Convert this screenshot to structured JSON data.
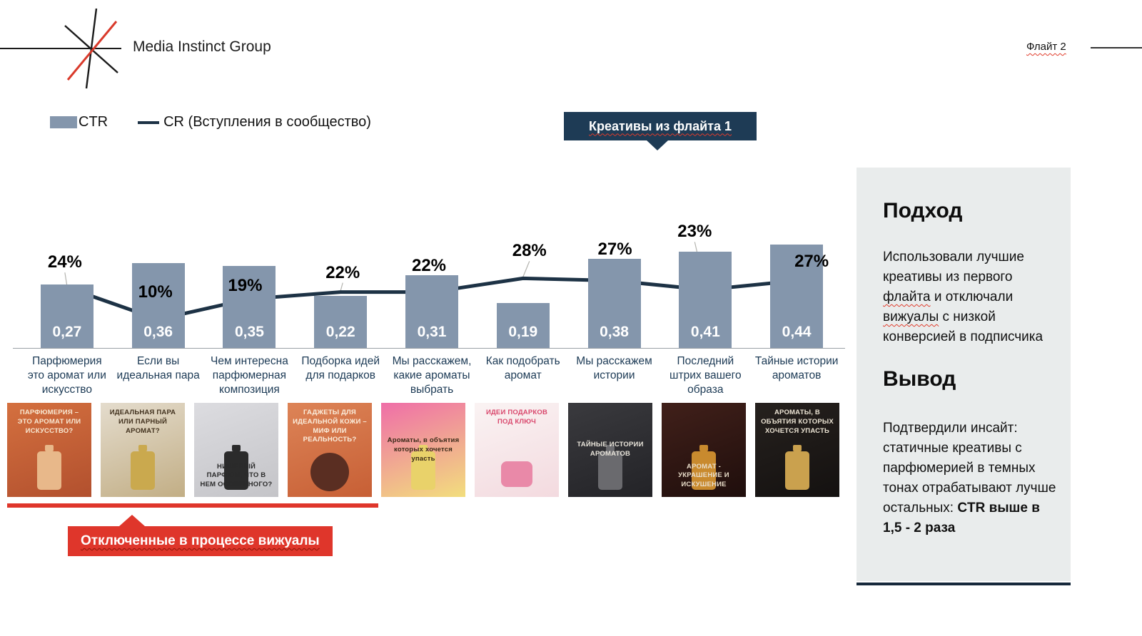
{
  "header": {
    "brand": "Media Instinct Group",
    "flight_label": "Флайт 2",
    "logo_icon": "star-asterisk-logo"
  },
  "legend": {
    "ctr_label": "CTR",
    "cr_label": "CR (Вступления в сообщество)"
  },
  "callout": {
    "label": "Креативы из флайта 1"
  },
  "chart_data": {
    "type": "bar",
    "title": "",
    "categories": [
      "Парфюмерия это аромат или искусство",
      "Если вы идеальная пара",
      "Чем интересна парфюмерная композиция",
      "Подборка идей для подарков",
      "Мы расскажем, какие ароматы выбрать",
      "Как подобрать аромат",
      "Мы расскажем истории",
      "Последний штрих вашего образа",
      "Тайные истории ароматов"
    ],
    "series": [
      {
        "name": "CTR",
        "type": "bar",
        "values": [
          0.27,
          0.36,
          0.35,
          0.22,
          0.31,
          0.19,
          0.38,
          0.41,
          0.44
        ],
        "value_labels": [
          "0,27",
          "0,36",
          "0,35",
          "0,22",
          "0,31",
          "0,19",
          "0,38",
          "0,41",
          "0,44"
        ]
      },
      {
        "name": "CR (Вступления в сообщество)",
        "type": "line",
        "values": [
          24,
          10,
          19,
          22,
          22,
          28,
          27,
          23,
          27
        ],
        "value_labels": [
          "24%",
          "10%",
          "19%",
          "22%",
          "22%",
          "28%",
          "27%",
          "23%",
          "27%"
        ]
      }
    ],
    "legend_position": "top-left",
    "grid": false,
    "bar_color": "#8496ac",
    "line_color": "#1d3245"
  },
  "creatives": [
    {
      "text": "ПАРФЮМЕРИЯ – ЭТО АРОМАТ ИЛИ ИСКУССТВО?",
      "bg": [
        "#d4703f",
        "#b2502e"
      ],
      "fg": "#f8e8d2",
      "pos": "top",
      "shape": "bottle",
      "shape_color": "#e8b88a"
    },
    {
      "text": "ИДЕАЛЬНАЯ ПАРА ИЛИ ПАРНЫЙ АРОМАТ?",
      "bg": [
        "#e4dccd",
        "#c2ae85"
      ],
      "fg": "#42321e",
      "pos": "top",
      "shape": "bottle",
      "shape_color": "#caa94e"
    },
    {
      "text": "НИШЕВЫЙ ПАРФЮМ, ЧТО В НЕМ ОСОБЕННОГО?",
      "bg": [
        "#dcdce0",
        "#c4c4c8"
      ],
      "fg": "#2a2a2a",
      "pos": "bottom",
      "shape": "bottle",
      "shape_color": "#2b2b2b"
    },
    {
      "text": "ГАДЖЕТЫ ДЛЯ ИДЕАЛЬНОЙ КОЖИ – МИФ ИЛИ РЕАЛЬНОСТЬ?",
      "bg": [
        "#dd8457",
        "#c75f35"
      ],
      "fg": "#fbeedd",
      "pos": "top",
      "shape": "sphere",
      "shape_color": "#5a2e22"
    },
    {
      "text": "Ароматы, в объятия которых хочется упасть",
      "bg": [
        "#ef6ea8",
        "#f2de7d"
      ],
      "fg": "#3a2a18",
      "pos": "center",
      "shape": "bottle",
      "shape_color": "#e9d26a"
    },
    {
      "text": "ИДЕИ ПОДАРКОВ ПОД КЛЮЧ",
      "bg": [
        "#faf3f3",
        "#f3dadf"
      ],
      "fg": "#d9486d",
      "pos": "top",
      "shape": "jar",
      "shape_color": "#e989a8"
    },
    {
      "text": "ТАЙНЫЕ ИСТОРИИ АРОМАТОВ",
      "bg": [
        "#3a3a3e",
        "#232327"
      ],
      "fg": "#e8e4da",
      "pos": "center",
      "shape": "bottle",
      "shape_color": "#6a6a6e"
    },
    {
      "text": "АРОМАТ - УКРАШЕНИЕ И ИСКУШЕНИЕ",
      "bg": [
        "#41201a",
        "#1f0e0c"
      ],
      "fg": "#e9ddc9",
      "pos": "bottom",
      "shape": "bottle",
      "shape_color": "#c98a2e"
    },
    {
      "text": "АРОМАТЫ, В ОБЪЯТИЯ КОТОРЫХ ХОЧЕТСЯ УПАСТЬ",
      "bg": [
        "#26211e",
        "#141110"
      ],
      "fg": "#ece4d4",
      "pos": "top",
      "shape": "bottle",
      "shape_color": "#caa14e"
    }
  ],
  "disabled_banner": {
    "label": "Отключенные в процессе вижуалы"
  },
  "side_panel": {
    "approach_title": "Подход",
    "approach_segments": [
      {
        "text": "Использовали лучшие креативы из первого "
      },
      {
        "text": "флайта",
        "wavy": true
      },
      {
        "text": " и отключали "
      },
      {
        "text": "вижуалы",
        "wavy": true
      },
      {
        "text": " с низкой конверсией в подписчика"
      }
    ],
    "conclusion_title": "Вывод",
    "conclusion_text": "Подтвердили инсайт: статичные креативы с парфюмерией в темных тонах отрабатывают лучше остальных: ",
    "conclusion_bold": "CTR выше в 1,5 - 2 раза"
  },
  "colors": {
    "bar": "#8496ac",
    "navy": "#1d3245",
    "badge_navy": "#1e3b55",
    "red": "#df362b",
    "panel_bg": "#e9ecec"
  }
}
